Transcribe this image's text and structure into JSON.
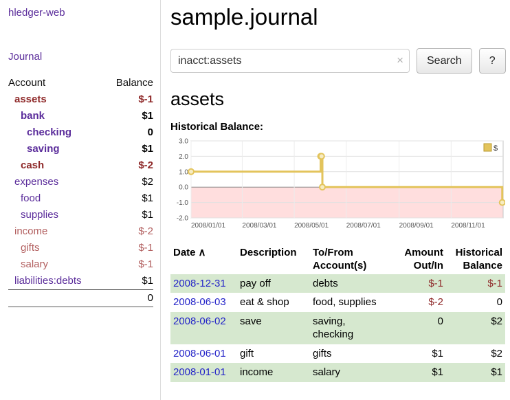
{
  "colors": {
    "purple": "#5b2d9b",
    "negative": "#8f2a2a",
    "negative-soft": "#b25f5f",
    "link-blue": "#2323c8",
    "row-green": "#d6e8cf",
    "chart-gold": "#e3c45c",
    "chart-gold-fill": "#f7ecc2",
    "chart-negative-bg": "#ffdede",
    "black": "#000000"
  },
  "sidebar": {
    "app_title": "hledger-web",
    "journal_link": "Journal",
    "accounts": {
      "header_account": "Account",
      "header_balance": "Balance",
      "rows": [
        {
          "name": "assets",
          "balance": "$-1",
          "depth": 1,
          "bold": true,
          "name_color": "red",
          "balance_color": "red"
        },
        {
          "name": "bank",
          "balance": "$1",
          "depth": 2,
          "bold": true,
          "name_color": "purple",
          "balance_color": "black"
        },
        {
          "name": "checking",
          "balance": "0",
          "depth": 3,
          "bold": true,
          "name_color": "purple",
          "balance_color": "black"
        },
        {
          "name": "saving",
          "balance": "$1",
          "depth": 3,
          "bold": true,
          "name_color": "purple",
          "balance_color": "black"
        },
        {
          "name": "cash",
          "balance": "$-2",
          "depth": 2,
          "bold": true,
          "name_color": "red",
          "balance_color": "red"
        },
        {
          "name": "expenses",
          "balance": "$2",
          "depth": 1,
          "bold": false,
          "name_color": "purple",
          "balance_color": "black"
        },
        {
          "name": "food",
          "balance": "$1",
          "depth": 2,
          "bold": false,
          "name_color": "purple",
          "balance_color": "black"
        },
        {
          "name": "supplies",
          "balance": "$1",
          "depth": 2,
          "bold": false,
          "name_color": "purple",
          "balance_color": "black"
        },
        {
          "name": "income",
          "balance": "$-2",
          "depth": 1,
          "bold": false,
          "name_color": "softred",
          "balance_color": "softred"
        },
        {
          "name": "gifts",
          "balance": "$-1",
          "depth": 2,
          "bold": false,
          "name_color": "softred",
          "balance_color": "softred"
        },
        {
          "name": "salary",
          "balance": "$-1",
          "depth": 2,
          "bold": false,
          "name_color": "softred",
          "balance_color": "softred"
        },
        {
          "name": "liabilities:debts",
          "balance": "$1",
          "depth": 1,
          "bold": false,
          "name_color": "purple",
          "balance_color": "black"
        }
      ],
      "total": "0"
    }
  },
  "main": {
    "title": "sample.journal",
    "search": {
      "value": "inacct:assets",
      "clear_icon": "×",
      "button_label": "Search",
      "help_label": "?"
    },
    "account_heading": "assets",
    "chart_title": "Historical Balance:"
  },
  "chart_data": {
    "type": "line",
    "step": true,
    "title": "Historical Balance",
    "xlabel": "",
    "ylabel": "",
    "ylim": [
      -2,
      3
    ],
    "x_domain": [
      "2008-01-01",
      "2009-01-01"
    ],
    "x_ticks": [
      "2008/01/01",
      "2008/03/01",
      "2008/05/01",
      "2008/07/01",
      "2008/09/01",
      "2008/11/01"
    ],
    "y_ticks": [
      {
        "v": 3,
        "label": "3.0"
      },
      {
        "v": 2,
        "label": "2.0"
      },
      {
        "v": 1,
        "label": "1.0"
      },
      {
        "v": 0,
        "label": "0.0"
      },
      {
        "v": -1,
        "label": "-1.0"
      },
      {
        "v": -2,
        "label": "-2.0"
      }
    ],
    "grid": true,
    "legend_position": "top-right",
    "negative_region": true,
    "series": [
      {
        "name": "$",
        "color_key": "chart-gold",
        "points": [
          [
            "2008-01-01",
            1
          ],
          [
            "2008-06-01",
            2
          ],
          [
            "2008-06-02",
            2
          ],
          [
            "2008-06-03",
            0
          ],
          [
            "2008-12-31",
            -1
          ]
        ]
      }
    ]
  },
  "register": {
    "headers": [
      {
        "lines": [
          "Date"
        ],
        "sort_icon": "∧",
        "align": "left"
      },
      {
        "lines": [
          "Description"
        ],
        "align": "left"
      },
      {
        "lines": [
          "To/From",
          "Account(s)"
        ],
        "align": "left"
      },
      {
        "lines": [
          "Amount",
          "Out/In"
        ],
        "align": "right"
      },
      {
        "lines": [
          "Historical",
          "Balance"
        ],
        "align": "right"
      }
    ],
    "rows": [
      {
        "date": "2008-12-31",
        "description": "pay off",
        "accounts": "debts",
        "amount": "$-1",
        "balance": "$-1",
        "amount_negative": true,
        "balance_negative": true,
        "shaded": true
      },
      {
        "date": "2008-06-03",
        "description": "eat & shop",
        "accounts": "food, supplies",
        "amount": "$-2",
        "balance": "0",
        "amount_negative": true,
        "balance_negative": false,
        "shaded": false
      },
      {
        "date": "2008-06-02",
        "description": "save",
        "accounts": "saving,\nchecking",
        "amount": "0",
        "balance": "$2",
        "amount_negative": false,
        "balance_negative": false,
        "shaded": true
      },
      {
        "date": "2008-06-01",
        "description": "gift",
        "accounts": "gifts",
        "amount": "$1",
        "balance": "$2",
        "amount_negative": false,
        "balance_negative": false,
        "shaded": false
      },
      {
        "date": "2008-01-01",
        "description": "income",
        "accounts": "salary",
        "amount": "$1",
        "balance": "$1",
        "amount_negative": false,
        "balance_negative": false,
        "shaded": true
      }
    ]
  }
}
